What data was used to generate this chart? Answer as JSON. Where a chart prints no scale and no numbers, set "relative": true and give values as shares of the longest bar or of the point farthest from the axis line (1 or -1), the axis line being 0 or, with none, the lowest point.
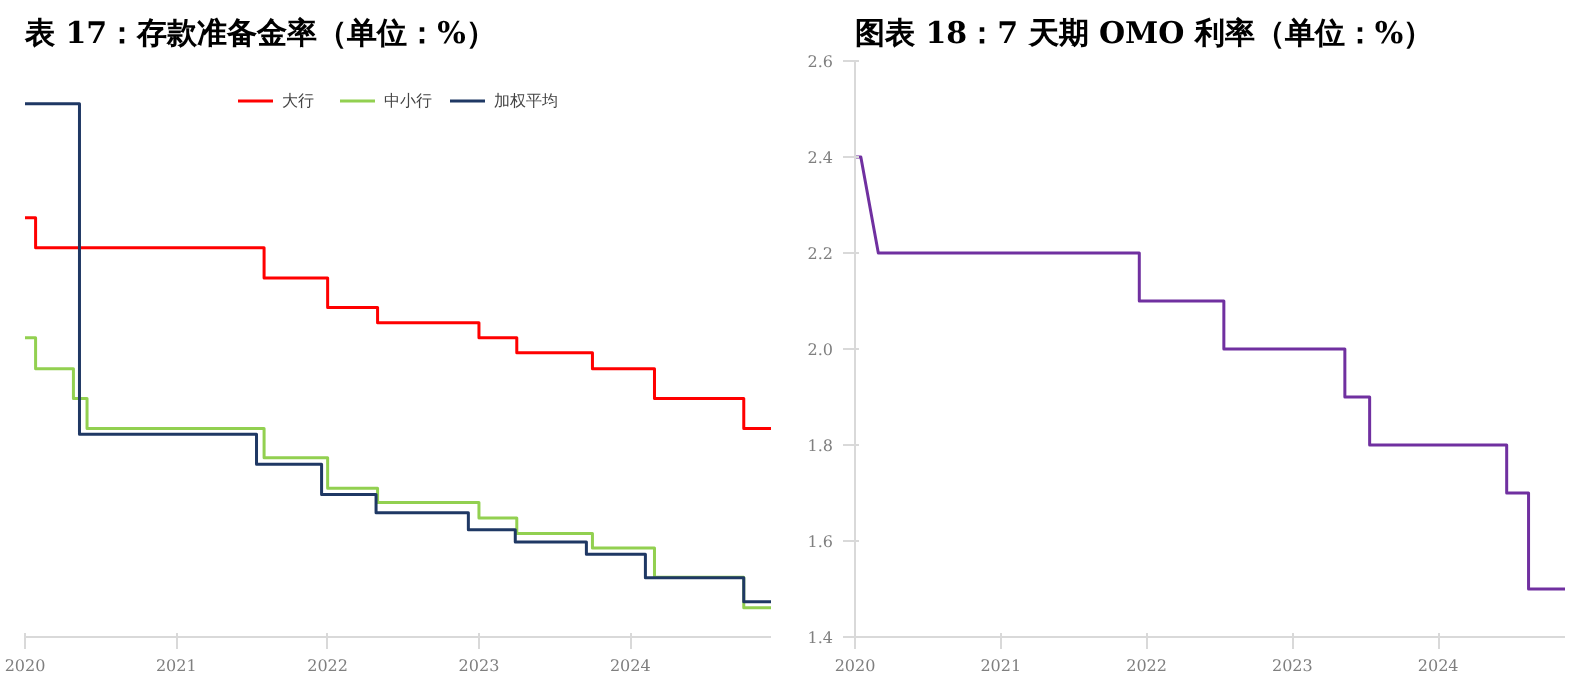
{
  "chart_data": [
    {
      "type": "step",
      "title": "表 17：存款准备金率（单位：%）",
      "relative": true,
      "legend": "top",
      "grid": false,
      "xlim": [
        2020,
        2024.93
      ],
      "xticks": [
        2020,
        2021,
        2022,
        2023,
        2024
      ],
      "series": [
        {
          "name": "大行",
          "color": "#ff0000",
          "x": [
            2020,
            2020.07,
            2021.58,
            2022.0,
            2022.33,
            2023.0,
            2023.25,
            2023.75,
            2024.16,
            2024.75,
            2024.93
          ],
          "values": [
            0.786,
            0.73,
            0.673,
            0.618,
            0.589,
            0.561,
            0.533,
            0.503,
            0.447,
            0.391,
            0.391
          ]
        },
        {
          "name": "中小行",
          "color": "#92d050",
          "x": [
            2020,
            2020.07,
            2020.32,
            2020.41,
            2021.58,
            2022.0,
            2022.33,
            2023.0,
            2023.25,
            2023.75,
            2024.16,
            2024.75,
            2024.93
          ],
          "values": [
            0.561,
            0.503,
            0.447,
            0.391,
            0.336,
            0.279,
            0.252,
            0.223,
            0.194,
            0.167,
            0.112,
            0.055,
            0.055
          ]
        },
        {
          "name": "加权平均",
          "color": "#1f3864",
          "x": [
            2020,
            2020.36,
            2021.53,
            2021.96,
            2022.32,
            2022.93,
            2023.24,
            2023.71,
            2024.1,
            2024.75,
            2024.93
          ],
          "values": [
            1,
            0.38,
            0.324,
            0.267,
            0.233,
            0.201,
            0.178,
            0.155,
            0.111,
            0.066,
            0.066
          ]
        }
      ]
    },
    {
      "type": "line",
      "title": "图表 18：7 天期 OMO 利率（单位：%）",
      "grid": false,
      "xlim": [
        2020,
        2024.87
      ],
      "xticks": [
        2020,
        2021,
        2022,
        2023,
        2024
      ],
      "ylim": [
        1.4,
        2.6
      ],
      "yticks": [
        {
          "value": 1.4,
          "label": "1.4"
        },
        {
          "value": 1.6,
          "label": "1.6"
        },
        {
          "value": 1.8,
          "label": "1.8"
        },
        {
          "value": 2.0,
          "label": "2.0"
        },
        {
          "value": 2.2,
          "label": "2.2"
        },
        {
          "value": 2.4,
          "label": "2.4"
        },
        {
          "value": 2.6,
          "label": "2.6"
        }
      ],
      "series": [
        {
          "color": "#7030a0",
          "x": [
            2020,
            2020.04,
            2020.16,
            2021.95,
            2021.95,
            2022.53,
            2022.53,
            2023.36,
            2023.36,
            2023.53,
            2023.53,
            2024.47,
            2024.47,
            2024.62,
            2024.62,
            2024.87
          ],
          "values": [
            2.4,
            2.4,
            2.2,
            2.2,
            2.1,
            2.1,
            2.0,
            2.0,
            1.9,
            1.9,
            1.8,
            1.8,
            1.7,
            1.7,
            1.5,
            1.5
          ]
        }
      ]
    }
  ]
}
